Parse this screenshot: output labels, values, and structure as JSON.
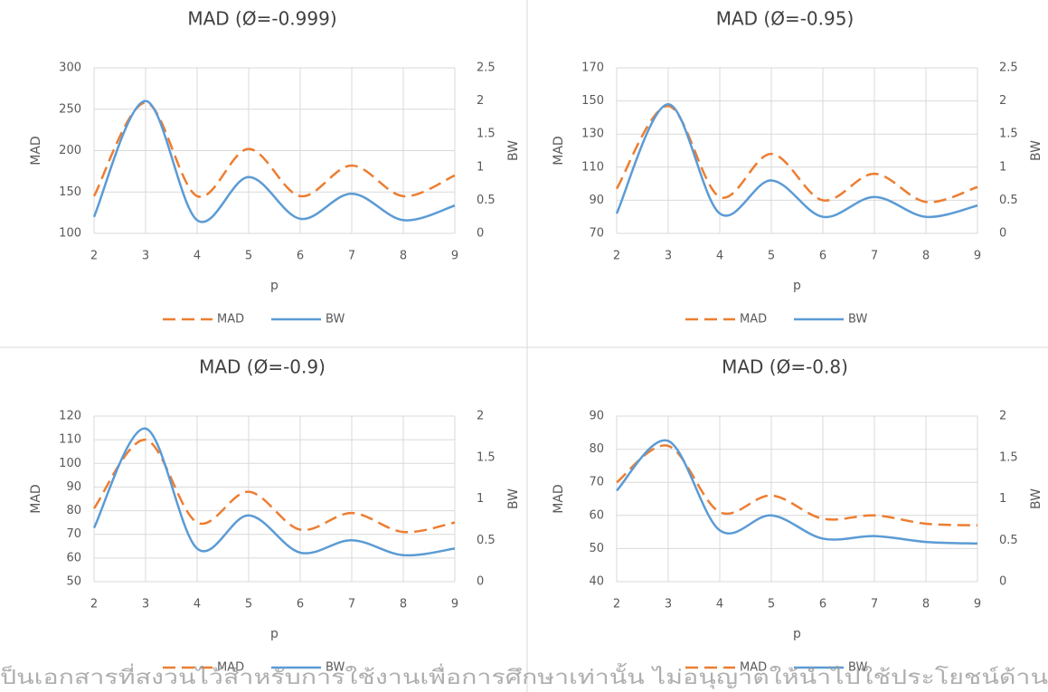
{
  "chart_data": [
    {
      "type": "line",
      "title": "MAD (Ø=-0.999)",
      "x_label": "p",
      "y_label": "MAD",
      "y2_label": "BW",
      "x": [
        2,
        3,
        4,
        5,
        6,
        7,
        8,
        9
      ],
      "xlim": [
        2,
        9
      ],
      "xticks": [
        2,
        3,
        4,
        5,
        6,
        7,
        8,
        9
      ],
      "ylim": [
        100,
        300
      ],
      "yticks": [
        100,
        150,
        200,
        250,
        300
      ],
      "y2lim": [
        0,
        2.5
      ],
      "y2ticks": [
        0,
        0.5,
        1,
        1.5,
        2,
        2.5
      ],
      "grid": true,
      "legend": "bottom",
      "series": [
        {
          "name": "MAD",
          "color": "#ED7D31",
          "line_style": "dashed",
          "values": [
            145,
            258,
            145,
            202,
            145,
            182,
            145,
            170
          ]
        },
        {
          "name": "BW",
          "color": "#5B9BD5",
          "line_style": "solid",
          "axis": "y2",
          "values": [
            0.25,
            2.0,
            0.2,
            0.85,
            0.22,
            0.6,
            0.2,
            0.42
          ]
        }
      ]
    },
    {
      "type": "line",
      "title": "MAD (Ø=-0.95)",
      "x_label": "p",
      "y_label": "MAD",
      "y2_label": "BW",
      "x": [
        2,
        3,
        4,
        5,
        6,
        7,
        8,
        9
      ],
      "xlim": [
        2,
        9
      ],
      "xticks": [
        2,
        3,
        4,
        5,
        6,
        7,
        8,
        9
      ],
      "ylim": [
        70,
        170
      ],
      "yticks": [
        70,
        90,
        110,
        130,
        150,
        170
      ],
      "y2lim": [
        0,
        2.5
      ],
      "y2ticks": [
        0,
        0.5,
        1,
        1.5,
        2,
        2.5
      ],
      "grid": true,
      "legend": "bottom",
      "series": [
        {
          "name": "MAD",
          "color": "#ED7D31",
          "line_style": "dashed",
          "values": [
            97,
            147,
            92,
            118,
            90,
            106,
            89,
            98
          ]
        },
        {
          "name": "BW",
          "color": "#5B9BD5",
          "line_style": "solid",
          "axis": "y2",
          "values": [
            0.3,
            1.95,
            0.3,
            0.8,
            0.25,
            0.55,
            0.25,
            0.42
          ]
        }
      ]
    },
    {
      "type": "line",
      "title": "MAD  (Ø=-0.9)",
      "x_label": "p",
      "y_label": "MAD",
      "y2_label": "BW",
      "x": [
        2,
        3,
        4,
        5,
        6,
        7,
        8,
        9
      ],
      "xlim": [
        2,
        9
      ],
      "xticks": [
        2,
        3,
        4,
        5,
        6,
        7,
        8,
        9
      ],
      "ylim": [
        50,
        120
      ],
      "yticks": [
        50,
        60,
        70,
        80,
        90,
        100,
        110,
        120
      ],
      "y2lim": [
        0,
        2
      ],
      "y2ticks": [
        0,
        0.5,
        1,
        1.5,
        2
      ],
      "grid": true,
      "legend": "bottom",
      "series": [
        {
          "name": "MAD",
          "color": "#ED7D31",
          "line_style": "dashed",
          "values": [
            81,
            110,
            75,
            88,
            72,
            79,
            71,
            75
          ]
        },
        {
          "name": "BW",
          "color": "#5B9BD5",
          "line_style": "solid",
          "axis": "y2",
          "values": [
            0.65,
            1.85,
            0.4,
            0.8,
            0.35,
            0.5,
            0.32,
            0.4
          ]
        }
      ]
    },
    {
      "type": "line",
      "title": "MAD  (Ø=-0.8)",
      "x_label": "p",
      "y_label": "MAD",
      "y2_label": "BW",
      "x": [
        2,
        3,
        4,
        5,
        6,
        7,
        8,
        9
      ],
      "xlim": [
        2,
        9
      ],
      "xticks": [
        2,
        3,
        4,
        5,
        6,
        7,
        8,
        9
      ],
      "ylim": [
        40,
        90
      ],
      "yticks": [
        40,
        50,
        60,
        70,
        80,
        90
      ],
      "y2lim": [
        0,
        2
      ],
      "y2ticks": [
        0,
        0.5,
        1,
        1.5,
        2
      ],
      "grid": true,
      "legend": "bottom",
      "series": [
        {
          "name": "MAD",
          "color": "#ED7D31",
          "line_style": "dashed",
          "values": [
            70,
            81,
            61,
            66,
            59,
            60,
            57.5,
            57
          ]
        },
        {
          "name": "BW",
          "color": "#5B9BD5",
          "line_style": "solid",
          "axis": "y2",
          "values": [
            1.1,
            1.7,
            0.62,
            0.8,
            0.52,
            0.55,
            0.48,
            0.46
          ]
        }
      ]
    }
  ],
  "watermark": "ป็นเอกสารที่สงวนไว้สำหรับการใช้งานเพื่อการศึกษาเท่านั้น ไม่อนุญาตให้นำไปใช้ประโยชน์ด้าน"
}
